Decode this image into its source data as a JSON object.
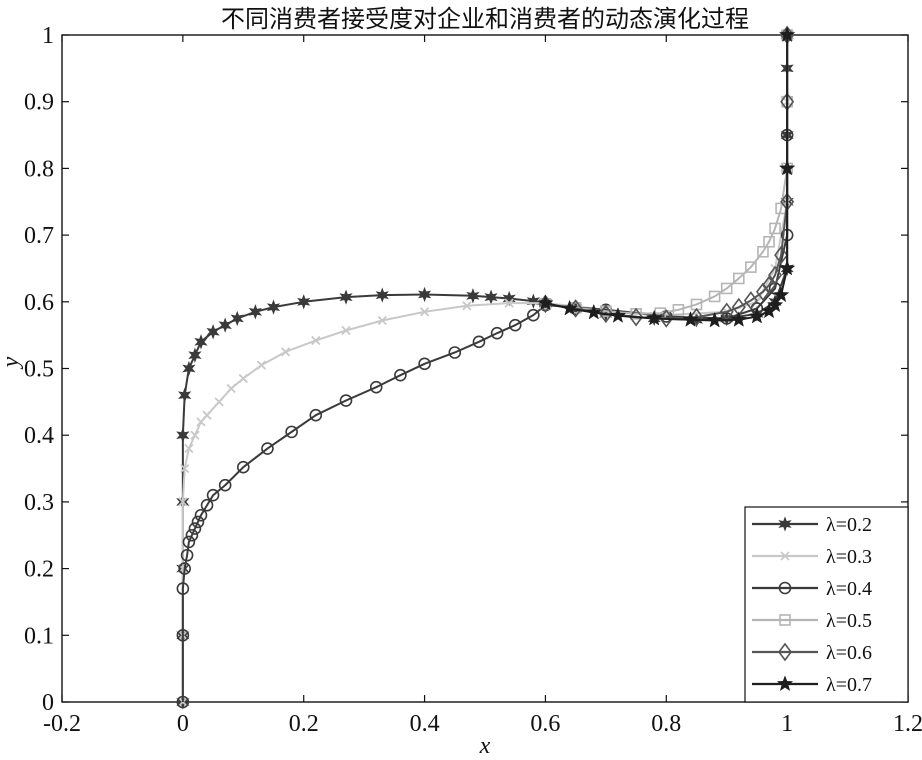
{
  "chart_data": {
    "type": "line",
    "title": "不同消费者接受度对企业和消费者的动态演化过程",
    "xlabel": "x",
    "ylabel": "y",
    "xlim": [
      -0.2,
      1.2
    ],
    "ylim": [
      0,
      1
    ],
    "x_ticks": [
      -0.2,
      0,
      0.2,
      0.4,
      0.6,
      0.8,
      1,
      1.2
    ],
    "y_ticks": [
      0,
      0.1,
      0.2,
      0.3,
      0.4,
      0.5,
      0.6,
      0.7,
      0.8,
      0.9,
      1
    ],
    "grid": false,
    "legend_position": "bottom-right",
    "series": [
      {
        "name": "λ=0.2",
        "color": "#3a3a3a",
        "marker": "asterisk",
        "x": [
          0,
          0,
          0,
          0,
          0,
          0.003,
          0.01,
          0.02,
          0.03,
          0.05,
          0.07,
          0.09,
          0.12,
          0.15,
          0.2,
          0.27,
          0.33,
          0.4,
          0.48,
          0.51,
          0.54,
          0.58,
          0.6,
          0.65,
          0.7,
          0.78,
          0.85,
          0.9,
          0.95,
          0.98,
          1,
          1,
          1,
          1,
          1
        ],
        "y": [
          0,
          0.1,
          0.2,
          0.3,
          0.4,
          0.46,
          0.5,
          0.52,
          0.54,
          0.555,
          0.565,
          0.575,
          0.585,
          0.592,
          0.6,
          0.607,
          0.61,
          0.611,
          0.609,
          0.607,
          0.605,
          0.601,
          0.598,
          0.59,
          0.582,
          0.575,
          0.573,
          0.575,
          0.582,
          0.6,
          0.65,
          0.75,
          0.85,
          0.95,
          1
        ]
      },
      {
        "name": "λ=0.3",
        "color": "#c8c8c8",
        "marker": "x",
        "x": [
          0,
          0,
          0,
          0,
          0.003,
          0.01,
          0.02,
          0.03,
          0.04,
          0.06,
          0.08,
          0.1,
          0.13,
          0.17,
          0.22,
          0.27,
          0.33,
          0.4,
          0.47,
          0.54,
          0.6,
          0.7,
          0.8,
          0.9,
          0.95,
          0.98,
          1,
          1,
          1
        ],
        "y": [
          0,
          0.1,
          0.2,
          0.3,
          0.35,
          0.38,
          0.4,
          0.42,
          0.43,
          0.45,
          0.47,
          0.485,
          0.505,
          0.525,
          0.542,
          0.557,
          0.572,
          0.585,
          0.594,
          0.598,
          0.598,
          0.588,
          0.58,
          0.585,
          0.6,
          0.65,
          0.75,
          0.9,
          1
        ]
      },
      {
        "name": "λ=0.4",
        "color": "#3a3a3a",
        "marker": "circle",
        "x": [
          0,
          0,
          0,
          0.003,
          0.007,
          0.01,
          0.015,
          0.02,
          0.025,
          0.03,
          0.04,
          0.05,
          0.07,
          0.1,
          0.14,
          0.18,
          0.22,
          0.27,
          0.32,
          0.36,
          0.4,
          0.45,
          0.49,
          0.52,
          0.55,
          0.58,
          0.6,
          0.7,
          0.8,
          0.9,
          0.95,
          0.98,
          1,
          1,
          1
        ],
        "y": [
          0,
          0.1,
          0.17,
          0.2,
          0.22,
          0.24,
          0.25,
          0.26,
          0.27,
          0.28,
          0.295,
          0.31,
          0.325,
          0.352,
          0.38,
          0.405,
          0.43,
          0.452,
          0.472,
          0.49,
          0.507,
          0.524,
          0.54,
          0.553,
          0.565,
          0.58,
          0.595,
          0.588,
          0.578,
          0.575,
          0.59,
          0.62,
          0.7,
          0.85,
          1
        ]
      },
      {
        "name": "λ=0.5",
        "color": "#b5b5b5",
        "marker": "square",
        "x": [
          0.6,
          0.65,
          0.7,
          0.75,
          0.79,
          0.82,
          0.85,
          0.88,
          0.9,
          0.92,
          0.94,
          0.96,
          0.97,
          0.98,
          0.99,
          1,
          1,
          1
        ],
        "y": [
          0.597,
          0.591,
          0.586,
          0.582,
          0.583,
          0.588,
          0.596,
          0.608,
          0.62,
          0.635,
          0.652,
          0.675,
          0.69,
          0.71,
          0.74,
          0.8,
          0.9,
          1
        ]
      },
      {
        "name": "λ=0.6",
        "color": "#555555",
        "marker": "diamond",
        "x": [
          0.6,
          0.65,
          0.7,
          0.75,
          0.8,
          0.85,
          0.9,
          0.92,
          0.94,
          0.96,
          0.97,
          0.98,
          0.99,
          1,
          1,
          1
        ],
        "y": [
          0.597,
          0.59,
          0.582,
          0.577,
          0.575,
          0.577,
          0.585,
          0.592,
          0.602,
          0.615,
          0.625,
          0.64,
          0.67,
          0.75,
          0.9,
          1
        ]
      },
      {
        "name": "λ=0.7",
        "color": "#1e1e1e",
        "marker": "star",
        "x": [
          0.6,
          0.64,
          0.68,
          0.72,
          0.78,
          0.84,
          0.88,
          0.92,
          0.95,
          0.97,
          0.98,
          0.99,
          1,
          1,
          1
        ],
        "y": [
          0.598,
          0.59,
          0.584,
          0.579,
          0.575,
          0.573,
          0.572,
          0.573,
          0.578,
          0.586,
          0.595,
          0.61,
          0.65,
          0.8,
          1
        ]
      }
    ]
  }
}
